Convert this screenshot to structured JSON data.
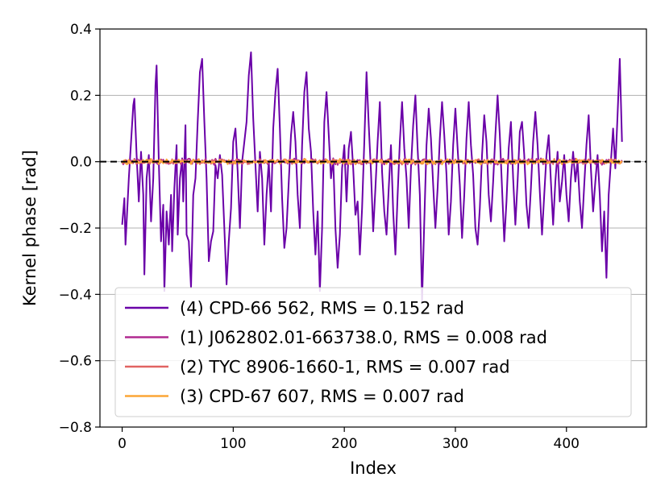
{
  "chart_data": {
    "type": "line",
    "title": "",
    "xlabel": "Index",
    "ylabel": "Kernel phase [rad]",
    "xlim": [
      -20,
      472
    ],
    "ylim": [
      -0.8,
      0.4
    ],
    "x_ticks": [
      0,
      100,
      200,
      300,
      400
    ],
    "y_ticks": [
      -0.8,
      -0.6,
      -0.4,
      -0.2,
      0.0,
      0.2,
      0.4
    ],
    "y_tick_labels": [
      "−0.8",
      "−0.6",
      "−0.4",
      "−0.2",
      "0.0",
      "0.2",
      "0.4"
    ],
    "grid": "horizontal",
    "zero_reference_line": 0.0,
    "legend_position": "lower-center",
    "x_count": 451,
    "series": [
      {
        "name": "(4) CPD-66 562, RMS = 0.152 rad",
        "color": "#6a00a8",
        "points": [
          [
            0,
            -0.19
          ],
          [
            2,
            -0.11
          ],
          [
            3,
            -0.25
          ],
          [
            6,
            -0.05
          ],
          [
            8,
            0.06
          ],
          [
            10,
            0.17
          ],
          [
            11,
            0.19
          ],
          [
            13,
            0.02
          ],
          [
            15,
            -0.12
          ],
          [
            17,
            0.03
          ],
          [
            19,
            -0.1
          ],
          [
            20,
            -0.34
          ],
          [
            22,
            -0.05
          ],
          [
            24,
            0.02
          ],
          [
            26,
            -0.18
          ],
          [
            28,
            -0.05
          ],
          [
            30,
            0.23
          ],
          [
            31,
            0.29
          ],
          [
            33,
            0.0
          ],
          [
            35,
            -0.24
          ],
          [
            37,
            -0.13
          ],
          [
            38,
            -0.39
          ],
          [
            40,
            -0.15
          ],
          [
            42,
            -0.25
          ],
          [
            44,
            -0.1
          ],
          [
            45,
            -0.27
          ],
          [
            47,
            -0.08
          ],
          [
            49,
            0.05
          ],
          [
            50,
            -0.22
          ],
          [
            52,
            -0.05
          ],
          [
            54,
            0.01
          ],
          [
            55,
            -0.12
          ],
          [
            57,
            0.11
          ],
          [
            58,
            -0.22
          ],
          [
            60,
            -0.24
          ],
          [
            62,
            -0.38
          ],
          [
            64,
            -0.1
          ],
          [
            66,
            -0.05
          ],
          [
            68,
            0.12
          ],
          [
            70,
            0.27
          ],
          [
            72,
            0.31
          ],
          [
            74,
            0.12
          ],
          [
            76,
            -0.05
          ],
          [
            78,
            -0.3
          ],
          [
            80,
            -0.24
          ],
          [
            82,
            -0.21
          ],
          [
            84,
            -0.01
          ],
          [
            86,
            -0.05
          ],
          [
            88,
            0.02
          ],
          [
            90,
            -0.04
          ],
          [
            92,
            -0.2
          ],
          [
            94,
            -0.37
          ],
          [
            96,
            -0.24
          ],
          [
            98,
            -0.14
          ],
          [
            100,
            0.06
          ],
          [
            102,
            0.1
          ],
          [
            104,
            -0.03
          ],
          [
            106,
            -0.2
          ],
          [
            108,
            0.0
          ],
          [
            110,
            0.06
          ],
          [
            112,
            0.12
          ],
          [
            114,
            0.26
          ],
          [
            116,
            0.33
          ],
          [
            118,
            0.13
          ],
          [
            120,
            -0.01
          ],
          [
            122,
            -0.15
          ],
          [
            124,
            0.03
          ],
          [
            126,
            -0.05
          ],
          [
            128,
            -0.25
          ],
          [
            130,
            -0.1
          ],
          [
            132,
            0.0
          ],
          [
            134,
            -0.15
          ],
          [
            136,
            0.1
          ],
          [
            138,
            0.21
          ],
          [
            140,
            0.28
          ],
          [
            142,
            0.1
          ],
          [
            144,
            -0.11
          ],
          [
            146,
            -0.26
          ],
          [
            148,
            -0.2
          ],
          [
            150,
            -0.06
          ],
          [
            152,
            0.08
          ],
          [
            154,
            0.15
          ],
          [
            156,
            0.06
          ],
          [
            158,
            -0.1
          ],
          [
            160,
            -0.2
          ],
          [
            162,
            0.05
          ],
          [
            164,
            0.21
          ],
          [
            166,
            0.27
          ],
          [
            168,
            0.1
          ],
          [
            170,
            0.03
          ],
          [
            172,
            -0.15
          ],
          [
            174,
            -0.28
          ],
          [
            176,
            -0.15
          ],
          [
            178,
            -0.39
          ],
          [
            180,
            -0.2
          ],
          [
            182,
            0.12
          ],
          [
            184,
            0.21
          ],
          [
            186,
            0.08
          ],
          [
            188,
            -0.05
          ],
          [
            190,
            0.01
          ],
          [
            192,
            -0.2
          ],
          [
            194,
            -0.32
          ],
          [
            196,
            -0.22
          ],
          [
            198,
            -0.02
          ],
          [
            200,
            0.05
          ],
          [
            202,
            -0.12
          ],
          [
            204,
            0.04
          ],
          [
            206,
            0.09
          ],
          [
            208,
            -0.02
          ],
          [
            210,
            -0.16
          ],
          [
            212,
            -0.12
          ],
          [
            214,
            -0.28
          ],
          [
            216,
            -0.14
          ],
          [
            218,
            0.06
          ],
          [
            220,
            0.27
          ],
          [
            222,
            0.11
          ],
          [
            224,
            -0.03
          ],
          [
            226,
            -0.21
          ],
          [
            228,
            -0.08
          ],
          [
            230,
            0.06
          ],
          [
            232,
            0.18
          ],
          [
            234,
            -0.03
          ],
          [
            236,
            -0.15
          ],
          [
            238,
            -0.22
          ],
          [
            240,
            -0.08
          ],
          [
            242,
            0.05
          ],
          [
            244,
            -0.15
          ],
          [
            246,
            -0.28
          ],
          [
            248,
            -0.1
          ],
          [
            250,
            0.06
          ],
          [
            252,
            0.18
          ],
          [
            254,
            0.04
          ],
          [
            256,
            -0.05
          ],
          [
            258,
            -0.2
          ],
          [
            260,
            -0.02
          ],
          [
            262,
            0.11
          ],
          [
            264,
            0.2
          ],
          [
            266,
            0.04
          ],
          [
            268,
            -0.1
          ],
          [
            270,
            -0.42
          ],
          [
            272,
            -0.18
          ],
          [
            274,
            0.05
          ],
          [
            276,
            0.16
          ],
          [
            278,
            0.07
          ],
          [
            280,
            -0.07
          ],
          [
            282,
            -0.2
          ],
          [
            284,
            -0.08
          ],
          [
            286,
            0.07
          ],
          [
            288,
            0.18
          ],
          [
            290,
            0.08
          ],
          [
            292,
            -0.04
          ],
          [
            294,
            -0.22
          ],
          [
            296,
            -0.12
          ],
          [
            298,
            0.05
          ],
          [
            300,
            0.16
          ],
          [
            302,
            0.04
          ],
          [
            304,
            -0.07
          ],
          [
            306,
            -0.23
          ],
          [
            308,
            -0.1
          ],
          [
            310,
            0.07
          ],
          [
            312,
            0.18
          ],
          [
            314,
            0.05
          ],
          [
            316,
            -0.04
          ],
          [
            318,
            -0.2
          ],
          [
            320,
            -0.25
          ],
          [
            322,
            -0.14
          ],
          [
            324,
            0.02
          ],
          [
            326,
            0.14
          ],
          [
            328,
            0.06
          ],
          [
            330,
            -0.1
          ],
          [
            332,
            -0.18
          ],
          [
            334,
            -0.06
          ],
          [
            336,
            0.08
          ],
          [
            338,
            0.2
          ],
          [
            340,
            0.08
          ],
          [
            342,
            -0.08
          ],
          [
            344,
            -0.24
          ],
          [
            346,
            -0.12
          ],
          [
            348,
            0.04
          ],
          [
            350,
            0.12
          ],
          [
            352,
            -0.05
          ],
          [
            354,
            -0.19
          ],
          [
            356,
            -0.06
          ],
          [
            358,
            0.09
          ],
          [
            360,
            0.12
          ],
          [
            362,
            0.02
          ],
          [
            364,
            -0.13
          ],
          [
            366,
            -0.2
          ],
          [
            368,
            -0.08
          ],
          [
            370,
            0.06
          ],
          [
            372,
            0.15
          ],
          [
            374,
            0.05
          ],
          [
            376,
            -0.09
          ],
          [
            378,
            -0.22
          ],
          [
            380,
            -0.1
          ],
          [
            382,
            0.02
          ],
          [
            384,
            0.08
          ],
          [
            386,
            -0.06
          ],
          [
            388,
            -0.19
          ],
          [
            390,
            -0.06
          ],
          [
            392,
            0.03
          ],
          [
            394,
            -0.12
          ],
          [
            396,
            -0.06
          ],
          [
            398,
            0.02
          ],
          [
            400,
            -0.1
          ],
          [
            402,
            -0.18
          ],
          [
            404,
            -0.05
          ],
          [
            406,
            0.03
          ],
          [
            408,
            -0.06
          ],
          [
            410,
            0.0
          ],
          [
            412,
            -0.12
          ],
          [
            414,
            -0.2
          ],
          [
            416,
            -0.07
          ],
          [
            418,
            0.05
          ],
          [
            420,
            0.14
          ],
          [
            422,
            -0.02
          ],
          [
            424,
            -0.15
          ],
          [
            426,
            -0.06
          ],
          [
            428,
            0.02
          ],
          [
            430,
            -0.1
          ],
          [
            432,
            -0.27
          ],
          [
            434,
            -0.15
          ],
          [
            436,
            -0.35
          ],
          [
            438,
            -0.1
          ],
          [
            440,
            0.0
          ],
          [
            442,
            0.1
          ],
          [
            444,
            -0.02
          ],
          [
            446,
            0.14
          ],
          [
            448,
            0.31
          ],
          [
            450,
            0.06
          ]
        ]
      },
      {
        "name": "(1) J062802.01-663738.0, RMS = 0.008 rad",
        "color": "#b12a90",
        "amplitude": 0.008
      },
      {
        "name": "(2) TYC 8906-1660-1, RMS = 0.007 rad",
        "color": "#e16462",
        "amplitude": 0.007
      },
      {
        "name": "(3) CPD-67 607, RMS = 0.007 rad",
        "color": "#fca636",
        "amplitude": 0.007
      }
    ]
  }
}
